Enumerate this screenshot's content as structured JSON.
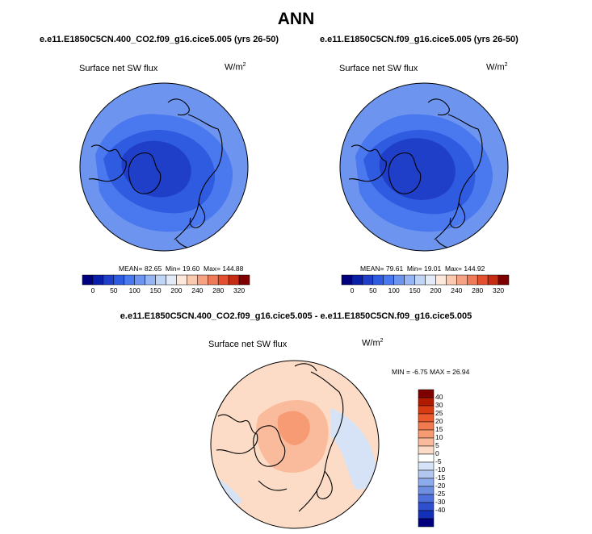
{
  "figure": {
    "title": "ANN"
  },
  "panels": [
    {
      "case_title": "e.e11.E1850C5CN.400_CO2.f09_g16.cice5.005 (yrs 26-50)",
      "variable": "Surface net SW flux",
      "units_base": "W/m",
      "units_exp": "2",
      "stats": {
        "mean_label": "MEAN=",
        "mean": "82.65",
        "min_label": "Min=",
        "min": "19.60",
        "max_label": "Max=",
        "max": "144.88"
      }
    },
    {
      "case_title": "e.e11.E1850C5CN.f09_g16.cice5.005 (yrs 26-50)",
      "variable": "Surface net SW flux",
      "units_base": "W/m",
      "units_exp": "2",
      "stats": {
        "mean_label": "MEAN=",
        "mean": "79.61",
        "min_label": "Min=",
        "min": "19.01",
        "max_label": "Max=",
        "max": "144.92"
      }
    }
  ],
  "diff_panel": {
    "case_title": "e.e11.E1850C5CN.400_CO2.f09_g16.cice5.005 - e.e11.E1850C5CN.f09_g16.cice5.005",
    "variable": "Surface net SW flux",
    "units_base": "W/m",
    "units_exp": "2",
    "stats_text": "MIN =  -6.75 MAX =  26.94"
  },
  "colorbar_abs": {
    "tick_labels": [
      "0",
      "50",
      "100",
      "150",
      "200",
      "240",
      "280",
      "320"
    ],
    "colors": [
      "#00007f",
      "#0a1fa8",
      "#1f3fc8",
      "#2f5be0",
      "#4a78ee",
      "#6d95f0",
      "#97b5f2",
      "#c0d4f5",
      "#e2ebf7",
      "#fde8dc",
      "#fbc9ae",
      "#f5a383",
      "#ee7a57",
      "#e2502f",
      "#c62c12",
      "#7f0000"
    ]
  },
  "colorbar_diff": {
    "tick_labels": [
      "40",
      "30",
      "25",
      "20",
      "15",
      "10",
      "5",
      "0",
      "-5",
      "-10",
      "-15",
      "-20",
      "-25",
      "-30",
      "-40"
    ],
    "colors": [
      "#7f0000",
      "#b21a00",
      "#d83a12",
      "#ea5a2c",
      "#f37a4e",
      "#f79b75",
      "#f9bb9c",
      "#fcdcc6",
      "#ffffff",
      "#d6e3f7",
      "#b1c7f0",
      "#8cabea",
      "#6f8fe3",
      "#4f6fda",
      "#2e4fce",
      "#142fb8",
      "#00007f"
    ]
  },
  "map_colors": {
    "ocean_abs": "#6d95f0",
    "mid_abs": "#4a78ee",
    "dark_abs": "#2f5be0",
    "darkest_abs": "#1f3fc8",
    "diff_base": "#fcdcc6",
    "diff_pos": "#f9bb9c",
    "diff_pos2": "#f79b75",
    "diff_neg": "#d6e3f7",
    "coast": "#000000"
  }
}
